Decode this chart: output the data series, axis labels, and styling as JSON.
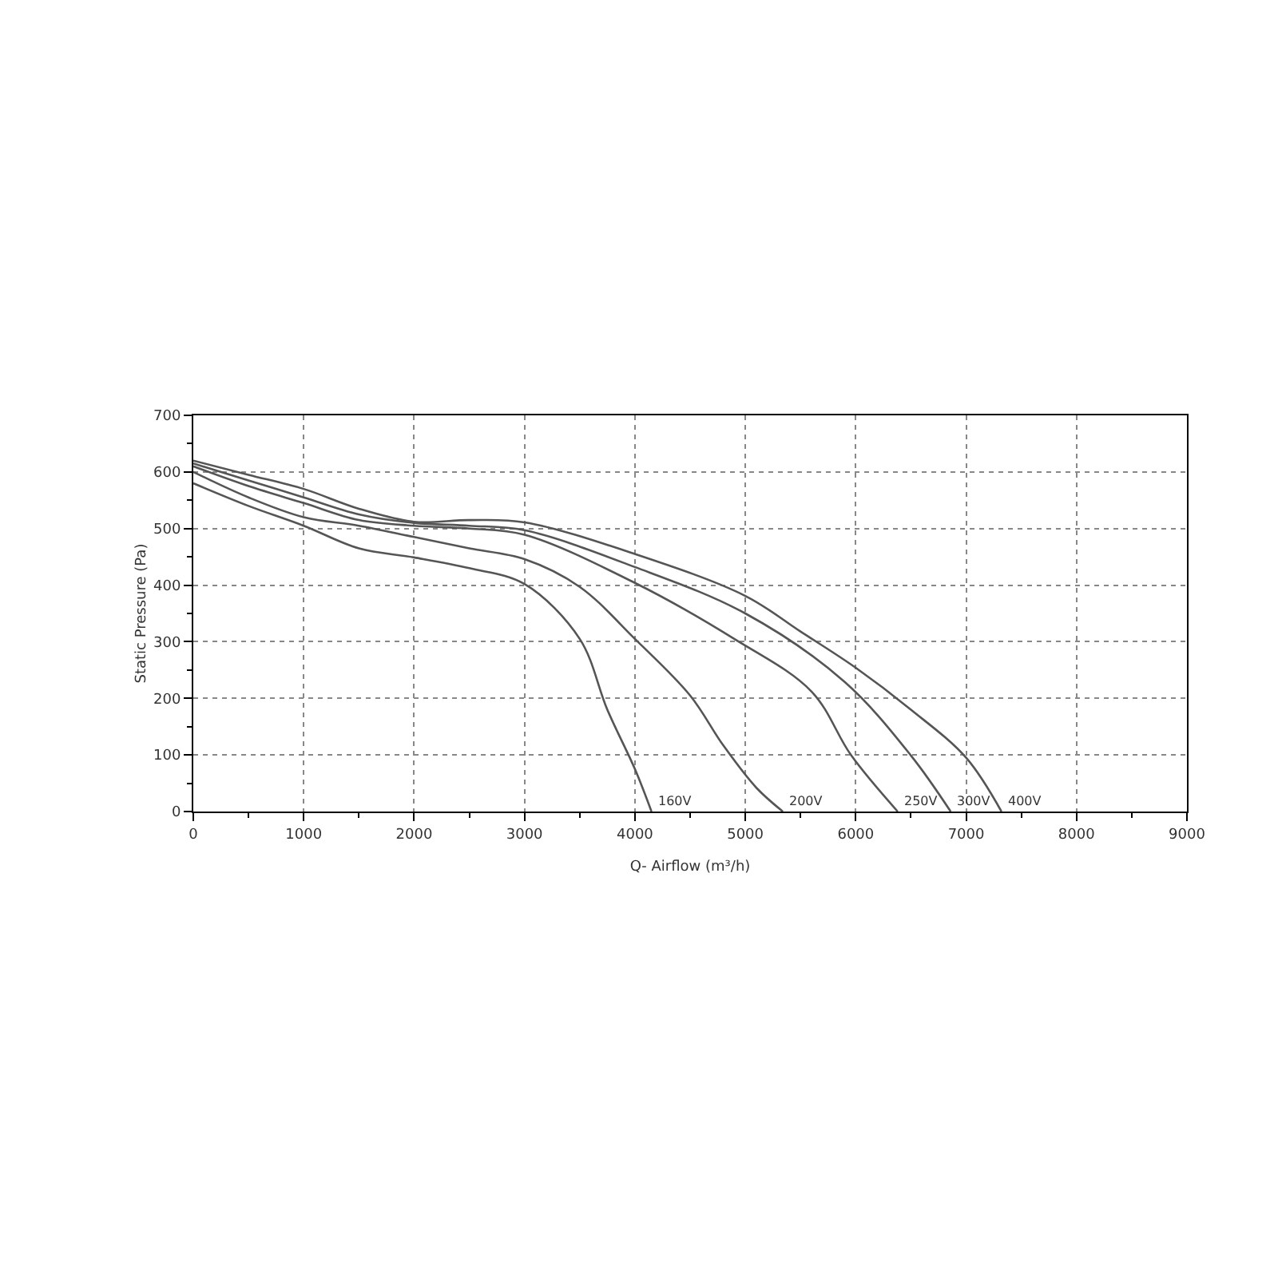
{
  "chart_data": {
    "type": "line",
    "xlabel": "Q- Airflow (m³/h)",
    "ylabel": "Static Pressure (Pa)",
    "xlim": [
      0,
      9000
    ],
    "xticks": [
      0,
      1000,
      2000,
      3000,
      4000,
      5000,
      6000,
      7000,
      8000,
      9000
    ],
    "ylim": [
      0,
      700
    ],
    "yticks": [
      0,
      100,
      200,
      300,
      400,
      500,
      600,
      700
    ],
    "grid": true,
    "marker": "none",
    "line_style": "solid",
    "series": [
      {
        "color": "#555555",
        "x": [
          0,
          500,
          1000,
          1500,
          2000,
          2500,
          3000,
          3500,
          3750,
          4000,
          4150
        ],
        "values": [
          580,
          540,
          505,
          465,
          449,
          430,
          402,
          305,
          180,
          75,
          0
        ]
      },
      {
        "color": "#555555",
        "x": [
          0,
          500,
          1000,
          1500,
          2000,
          2500,
          3000,
          3500,
          4000,
          4500,
          4800,
          5100,
          5340
        ],
        "values": [
          600,
          555,
          520,
          505,
          485,
          465,
          446,
          397,
          305,
          205,
          117,
          42,
          0
        ]
      },
      {
        "color": "#555555",
        "x": [
          0,
          500,
          1000,
          1500,
          2000,
          2500,
          3000,
          4000,
          4900,
          5600,
          5960,
          6380
        ],
        "values": [
          610,
          575,
          545,
          515,
          505,
          500,
          489,
          404,
          305,
          212,
          99,
          0
        ]
      },
      {
        "color": "#555555",
        "x": [
          0,
          500,
          1000,
          1500,
          2000,
          2500,
          3000,
          4000,
          5000,
          5900,
          6500,
          6860
        ],
        "values": [
          615,
          585,
          555,
          525,
          510,
          505,
          497,
          432,
          350,
          229,
          99,
          0
        ]
      },
      {
        "color": "#555555",
        "x": [
          0,
          500,
          1000,
          1500,
          2000,
          2500,
          3000,
          4000,
          5000,
          5500,
          6000,
          6500,
          7000,
          7320
        ],
        "values": [
          620,
          595,
          570,
          535,
          512,
          515,
          511,
          455,
          381,
          318,
          254,
          180,
          95,
          0
        ]
      }
    ],
    "annotations": [
      {
        "text": "160V",
        "x": 4150,
        "y": 0
      },
      {
        "text": "200V",
        "x": 5340,
        "y": 0
      },
      {
        "text": "250V",
        "x": 6380,
        "y": 0
      },
      {
        "text": "300V",
        "x": 6860,
        "y": 0
      },
      {
        "text": "400V",
        "x": 7320,
        "y": 0
      }
    ]
  }
}
